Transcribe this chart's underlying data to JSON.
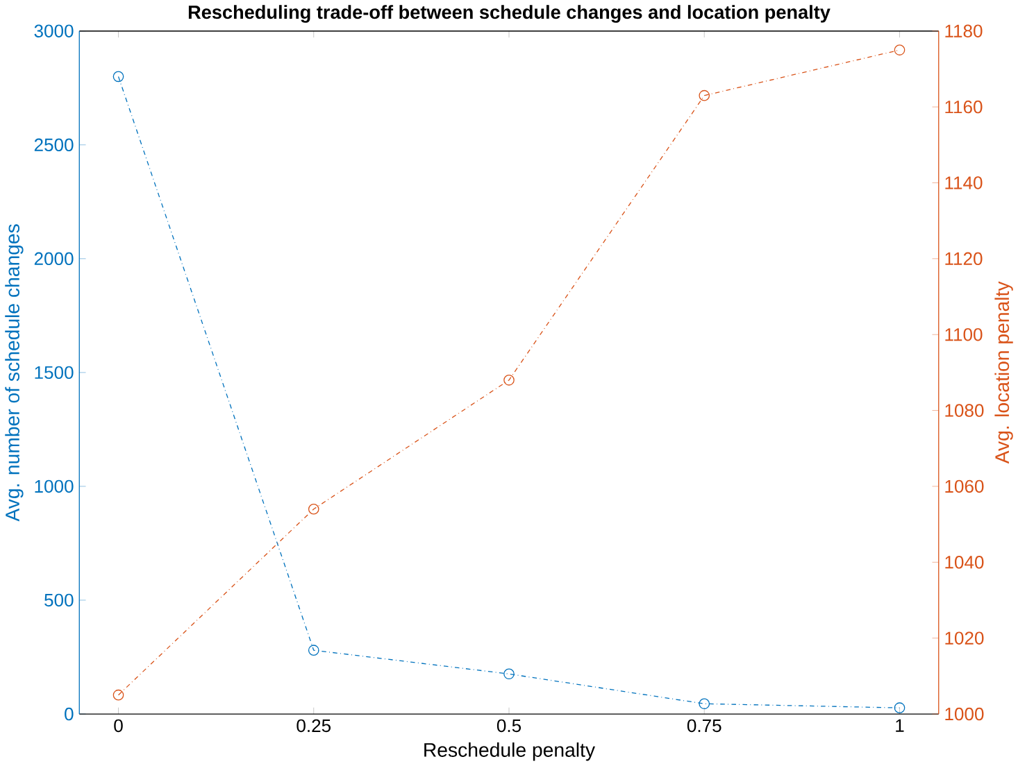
{
  "chart_data": {
    "type": "line",
    "title": "Rescheduling trade-off between schedule changes and location penalty",
    "xlabel": "Reschedule penalty",
    "ylabel": "Avg. number of schedule changes",
    "y2label": "Avg. location penalty",
    "x": [
      0,
      0.25,
      0.5,
      0.75,
      1
    ],
    "series": [
      {
        "color": "#0072bd",
        "values": [
          2800,
          280,
          176,
          45,
          27
        ]
      },
      {
        "color": "#d95319",
        "axis": "y2",
        "values": [
          1005,
          1054,
          1088,
          1163,
          1175
        ]
      }
    ],
    "xlim": [
      -0.05,
      1.05
    ],
    "xticks": [
      0,
      0.25,
      0.5,
      0.75,
      1
    ],
    "ylim": [
      0,
      3000
    ],
    "yticks": [
      0,
      500,
      1000,
      1500,
      2000,
      2500,
      3000
    ],
    "y2lim": [
      1000,
      1180
    ],
    "y2ticks": [
      1000,
      1020,
      1040,
      1060,
      1080,
      1100,
      1120,
      1140,
      1160,
      1180
    ],
    "grid": false,
    "marker": "circle",
    "line_style": "dashdot"
  }
}
